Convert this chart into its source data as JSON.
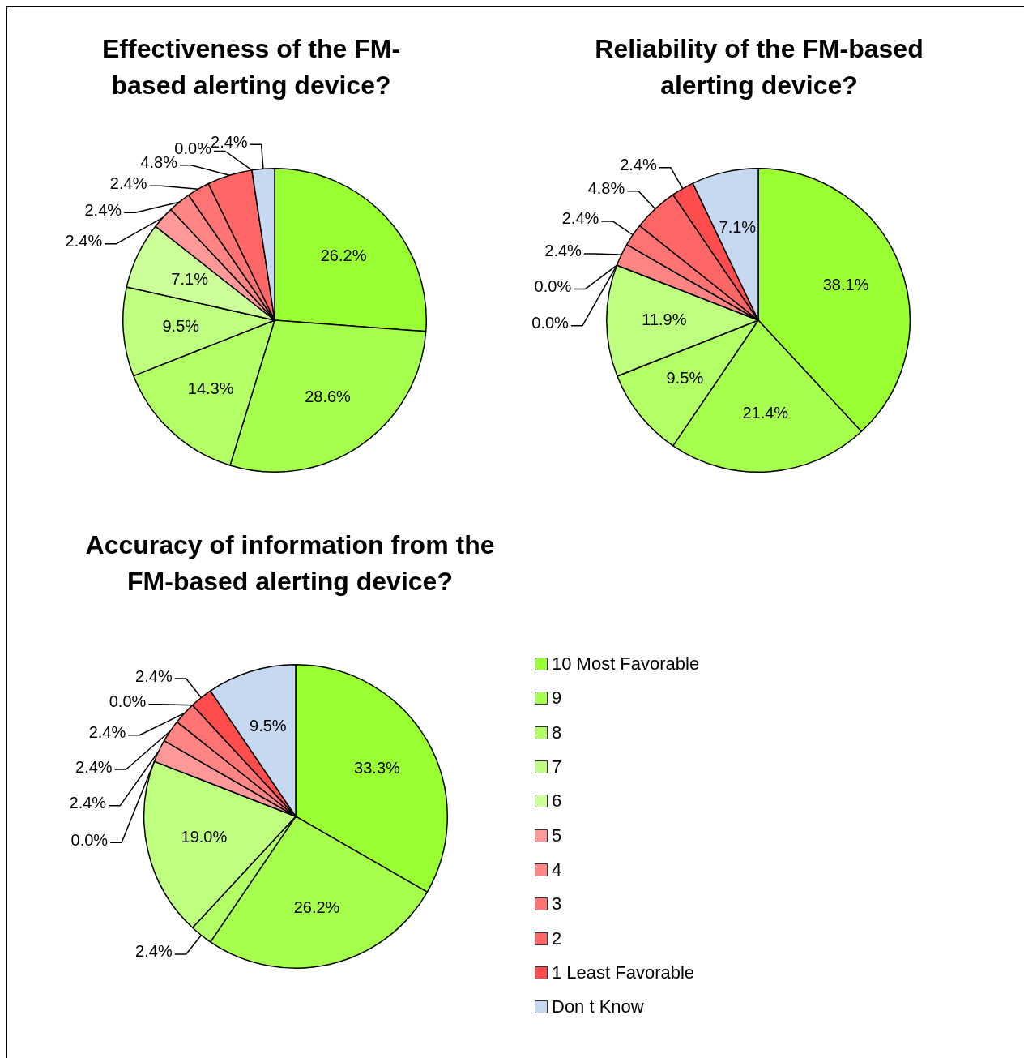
{
  "chart_data": [
    {
      "type": "pie",
      "title": "Effectiveness of the FM-based alerting device?",
      "categories": [
        null,
        null,
        null,
        null,
        null,
        null,
        null,
        null,
        null,
        null,
        null
      ],
      "values": [
        26.2,
        28.6,
        14.3,
        9.5,
        7.1,
        2.4,
        2.4,
        2.4,
        4.8,
        0.0,
        2.4
      ],
      "value_labels": [
        "26.2%",
        "28.6%",
        "14.3%",
        "9.5%",
        "7.1%",
        "2.4%",
        "2.4%",
        "2.4%",
        "4.8%",
        "0.0%",
        "2.4%"
      ],
      "colors": [
        "#99ff33",
        "#a6ff4d",
        "#b3ff66",
        "#bfff80",
        "#ccff99",
        "#ff9999",
        "#ff8585",
        "#ff7373",
        "#ff6666",
        "#ff4d4d",
        "#c6d9f1"
      ]
    },
    {
      "type": "pie",
      "title": "Reliability of the FM-based alerting device?",
      "categories": [
        null,
        null,
        null,
        null,
        null,
        null,
        null,
        null,
        null,
        null,
        null
      ],
      "values": [
        38.1,
        21.4,
        9.5,
        11.9,
        0.0,
        0.0,
        2.4,
        2.4,
        4.8,
        2.4,
        7.1
      ],
      "value_labels": [
        "38.1%",
        "21.4%",
        "9.5%",
        "11.9%",
        "0.0%",
        "0.0%",
        "2.4%",
        "2.4%",
        "4.8%",
        "2.4%",
        "7.1%"
      ],
      "colors": [
        "#99ff33",
        "#a6ff4d",
        "#b3ff66",
        "#bfff80",
        "#ccff99",
        "#ff9999",
        "#ff8585",
        "#ff7373",
        "#ff6666",
        "#ff4d4d",
        "#c6d9f1"
      ]
    },
    {
      "type": "pie",
      "title": "Accuracy of information from the FM-based alerting device?",
      "categories": [
        "10 Most Favorable",
        "9",
        "8",
        "7",
        "6",
        "5",
        "4",
        "3",
        "2",
        "1 Least Favorable",
        "Don t Know"
      ],
      "values": [
        33.3,
        26.2,
        2.4,
        19.0,
        0.0,
        2.4,
        2.4,
        2.4,
        0.0,
        2.4,
        9.5
      ],
      "value_labels": [
        "33.3%",
        "26.2%",
        "2.4%",
        "19.0%",
        "0.0%",
        "2.4%",
        "2.4%",
        "2.4%",
        "0.0%",
        "2.4%",
        "9.5%"
      ],
      "colors": [
        "#99ff33",
        "#a6ff4d",
        "#b3ff66",
        "#bfff80",
        "#ccff99",
        "#ff9999",
        "#ff8585",
        "#ff7373",
        "#ff6666",
        "#ff4d4d",
        "#c6d9f1"
      ],
      "legend": "right"
    }
  ]
}
